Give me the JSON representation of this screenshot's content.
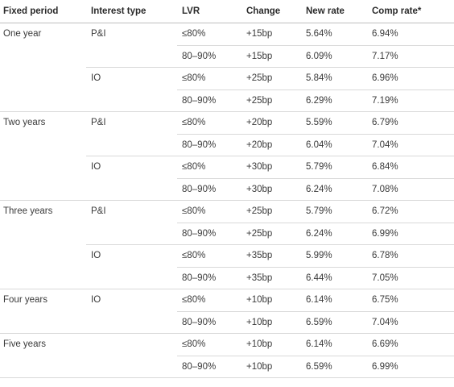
{
  "headers": [
    "Fixed period",
    "Interest type",
    "LVR",
    "Change",
    "New rate",
    "Comp rate*"
  ],
  "groups": [
    {
      "label": "One year"
    },
    {
      "label": "Two years"
    },
    {
      "label": "Three years"
    },
    {
      "label": "Four years"
    },
    {
      "label": "Five years"
    }
  ],
  "rows": [
    {
      "period": "One year",
      "type": "P&I",
      "lvr": "≤80%",
      "change": "+15bp",
      "new_rate": "5.64%",
      "comp_rate": "6.94%"
    },
    {
      "period": "One year",
      "type": "P&I",
      "lvr": "80–90%",
      "change": "+15bp",
      "new_rate": "6.09%",
      "comp_rate": "7.17%"
    },
    {
      "period": "One year",
      "type": "IO",
      "lvr": "≤80%",
      "change": "+25bp",
      "new_rate": "5.84%",
      "comp_rate": "6.96%"
    },
    {
      "period": "One year",
      "type": "IO",
      "lvr": "80–90%",
      "change": "+25bp",
      "new_rate": "6.29%",
      "comp_rate": "7.19%"
    },
    {
      "period": "Two years",
      "type": "P&I",
      "lvr": "≤80%",
      "change": "+20bp",
      "new_rate": "5.59%",
      "comp_rate": "6.79%"
    },
    {
      "period": "Two years",
      "type": "P&I",
      "lvr": "80–90%",
      "change": "+20bp",
      "new_rate": "6.04%",
      "comp_rate": "7.04%"
    },
    {
      "period": "Two years",
      "type": "IO",
      "lvr": "≤80%",
      "change": "+30bp",
      "new_rate": "5.79%",
      "comp_rate": "6.84%"
    },
    {
      "period": "Two years",
      "type": "IO",
      "lvr": "80–90%",
      "change": "+30bp",
      "new_rate": "6.24%",
      "comp_rate": "7.08%"
    },
    {
      "period": "Three years",
      "type": "P&I",
      "lvr": "≤80%",
      "change": "+25bp",
      "new_rate": "5.79%",
      "comp_rate": "6.72%"
    },
    {
      "period": "Three years",
      "type": "P&I",
      "lvr": "80–90%",
      "change": "+25bp",
      "new_rate": "6.24%",
      "comp_rate": "6.99%"
    },
    {
      "period": "Three years",
      "type": "IO",
      "lvr": "≤80%",
      "change": "+35bp",
      "new_rate": "5.99%",
      "comp_rate": "6.78%"
    },
    {
      "period": "Three years",
      "type": "IO",
      "lvr": "80–90%",
      "change": "+35bp",
      "new_rate": "6.44%",
      "comp_rate": "7.05%"
    },
    {
      "period": "Four years",
      "type": "IO",
      "lvr": "≤80%",
      "change": "+10bp",
      "new_rate": "6.14%",
      "comp_rate": "6.75%"
    },
    {
      "period": "Four years",
      "type": "IO",
      "lvr": "80–90%",
      "change": "+10bp",
      "new_rate": "6.59%",
      "comp_rate": "7.04%"
    },
    {
      "period": "Five years",
      "type": "",
      "lvr": "≤80%",
      "change": "+10bp",
      "new_rate": "6.14%",
      "comp_rate": "6.69%"
    },
    {
      "period": "Five years",
      "type": "",
      "lvr": "80–90%",
      "change": "+10bp",
      "new_rate": "6.59%",
      "comp_rate": "6.99%"
    }
  ]
}
